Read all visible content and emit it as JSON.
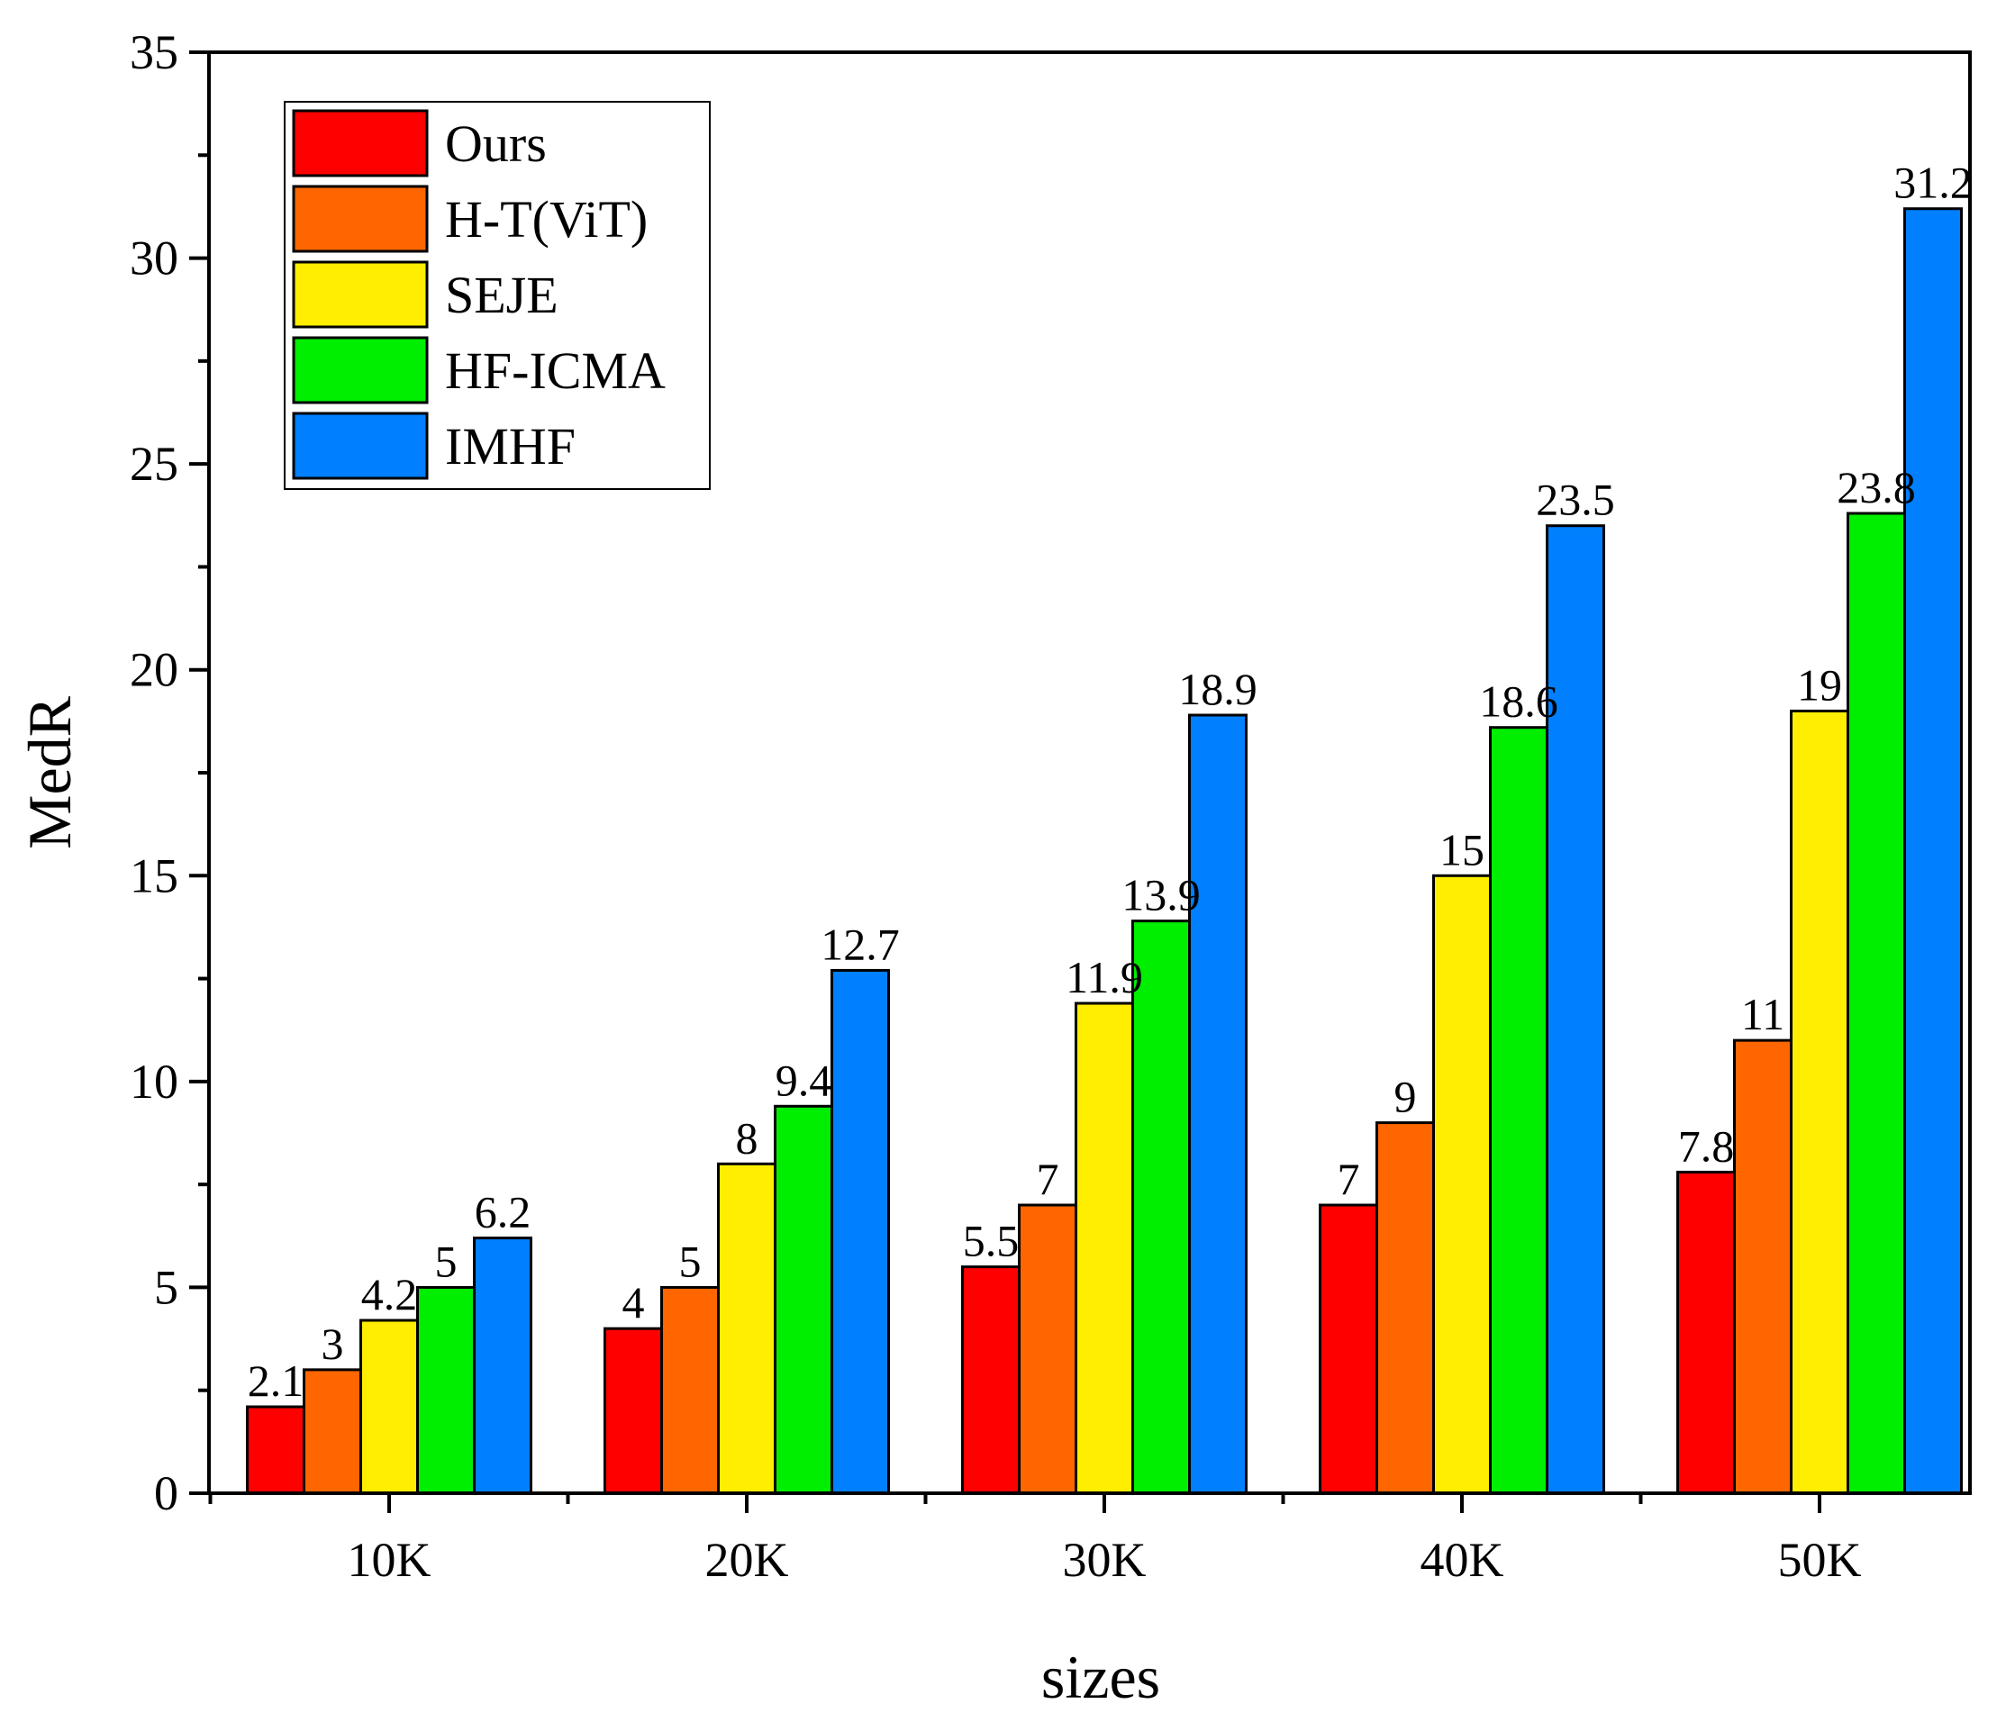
{
  "chart_data": {
    "type": "bar",
    "title": "",
    "xlabel": "sizes",
    "ylabel": "MedR",
    "categories": [
      "10K",
      "20K",
      "30K",
      "40K",
      "50K"
    ],
    "ylim": [
      0,
      35
    ],
    "yticks": [
      "0",
      "5",
      "10",
      "15",
      "20",
      "25",
      "30",
      "35"
    ],
    "legend_position": "top-left",
    "series": [
      {
        "name": "Ours",
        "color": "#ff0000",
        "values": [
          2.1,
          4,
          5.5,
          7,
          7.8
        ],
        "labels": [
          "2.1",
          "4",
          "5.5",
          "7",
          "7.8"
        ]
      },
      {
        "name": "H-T(ViT)",
        "color": "#ff6600",
        "values": [
          3,
          5,
          7,
          9,
          11
        ],
        "labels": [
          "3",
          "5",
          "7",
          "9",
          "11"
        ]
      },
      {
        "name": "SEJE",
        "color": "#ffee00",
        "values": [
          4.2,
          8,
          11.9,
          15,
          19
        ],
        "labels": [
          "4.2",
          "8",
          "11.9",
          "15",
          "19"
        ]
      },
      {
        "name": "HF-ICMA",
        "color": "#00ee00",
        "values": [
          5,
          9.4,
          13.9,
          18.6,
          23.8
        ],
        "labels": [
          "5",
          "9.4",
          "13.9",
          "18.6",
          "23.8"
        ]
      },
      {
        "name": "IMHF",
        "color": "#0080ff",
        "values": [
          6.2,
          12.7,
          18.9,
          23.5,
          31.2
        ],
        "labels": [
          "6.2",
          "12.7",
          "18.9",
          "23.5",
          "31.2"
        ]
      }
    ]
  }
}
